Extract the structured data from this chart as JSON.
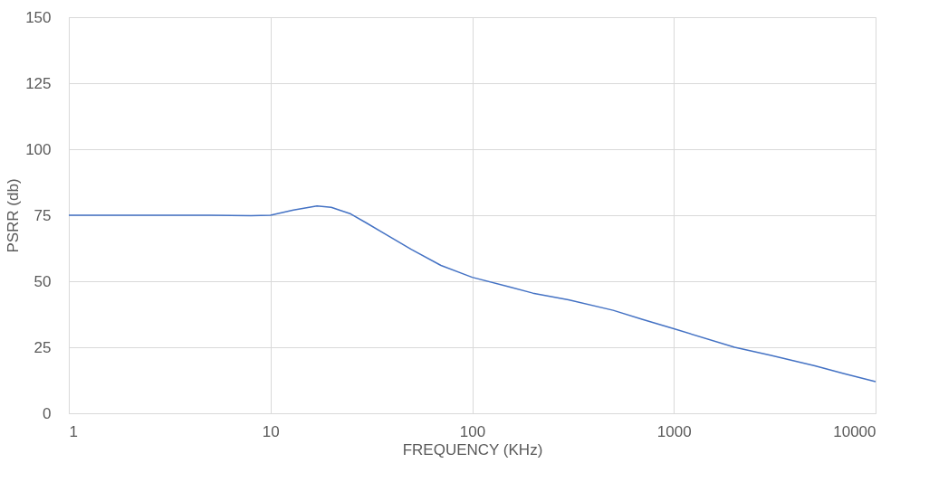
{
  "chart_data": {
    "type": "line",
    "xlabel": "FREQUENCY (KHz)",
    "ylabel": "PSRR (db)",
    "log": "x",
    "grid": true,
    "marker": "none",
    "line_style": "solid",
    "xlim": [
      1,
      10000
    ],
    "xticks": [
      1,
      10,
      100,
      1000,
      10000
    ],
    "ylim": [
      0,
      150
    ],
    "yticks": [
      0,
      25,
      50,
      75,
      100,
      125,
      150
    ],
    "series": [
      {
        "color": "#4472c4",
        "x": [
          1,
          5,
          8,
          10,
          13,
          17,
          20,
          25,
          30,
          50,
          70,
          100,
          150,
          200,
          300,
          500,
          700,
          1000,
          2000,
          3000,
          5000,
          7000,
          10000
        ],
        "values": [
          75,
          75,
          74.8,
          75,
          77,
          78.5,
          78,
          75.5,
          72,
          62,
          56,
          51.5,
          48,
          45.5,
          43,
          39,
          35.5,
          32,
          25,
          22,
          18,
          15,
          12
        ]
      }
    ]
  }
}
